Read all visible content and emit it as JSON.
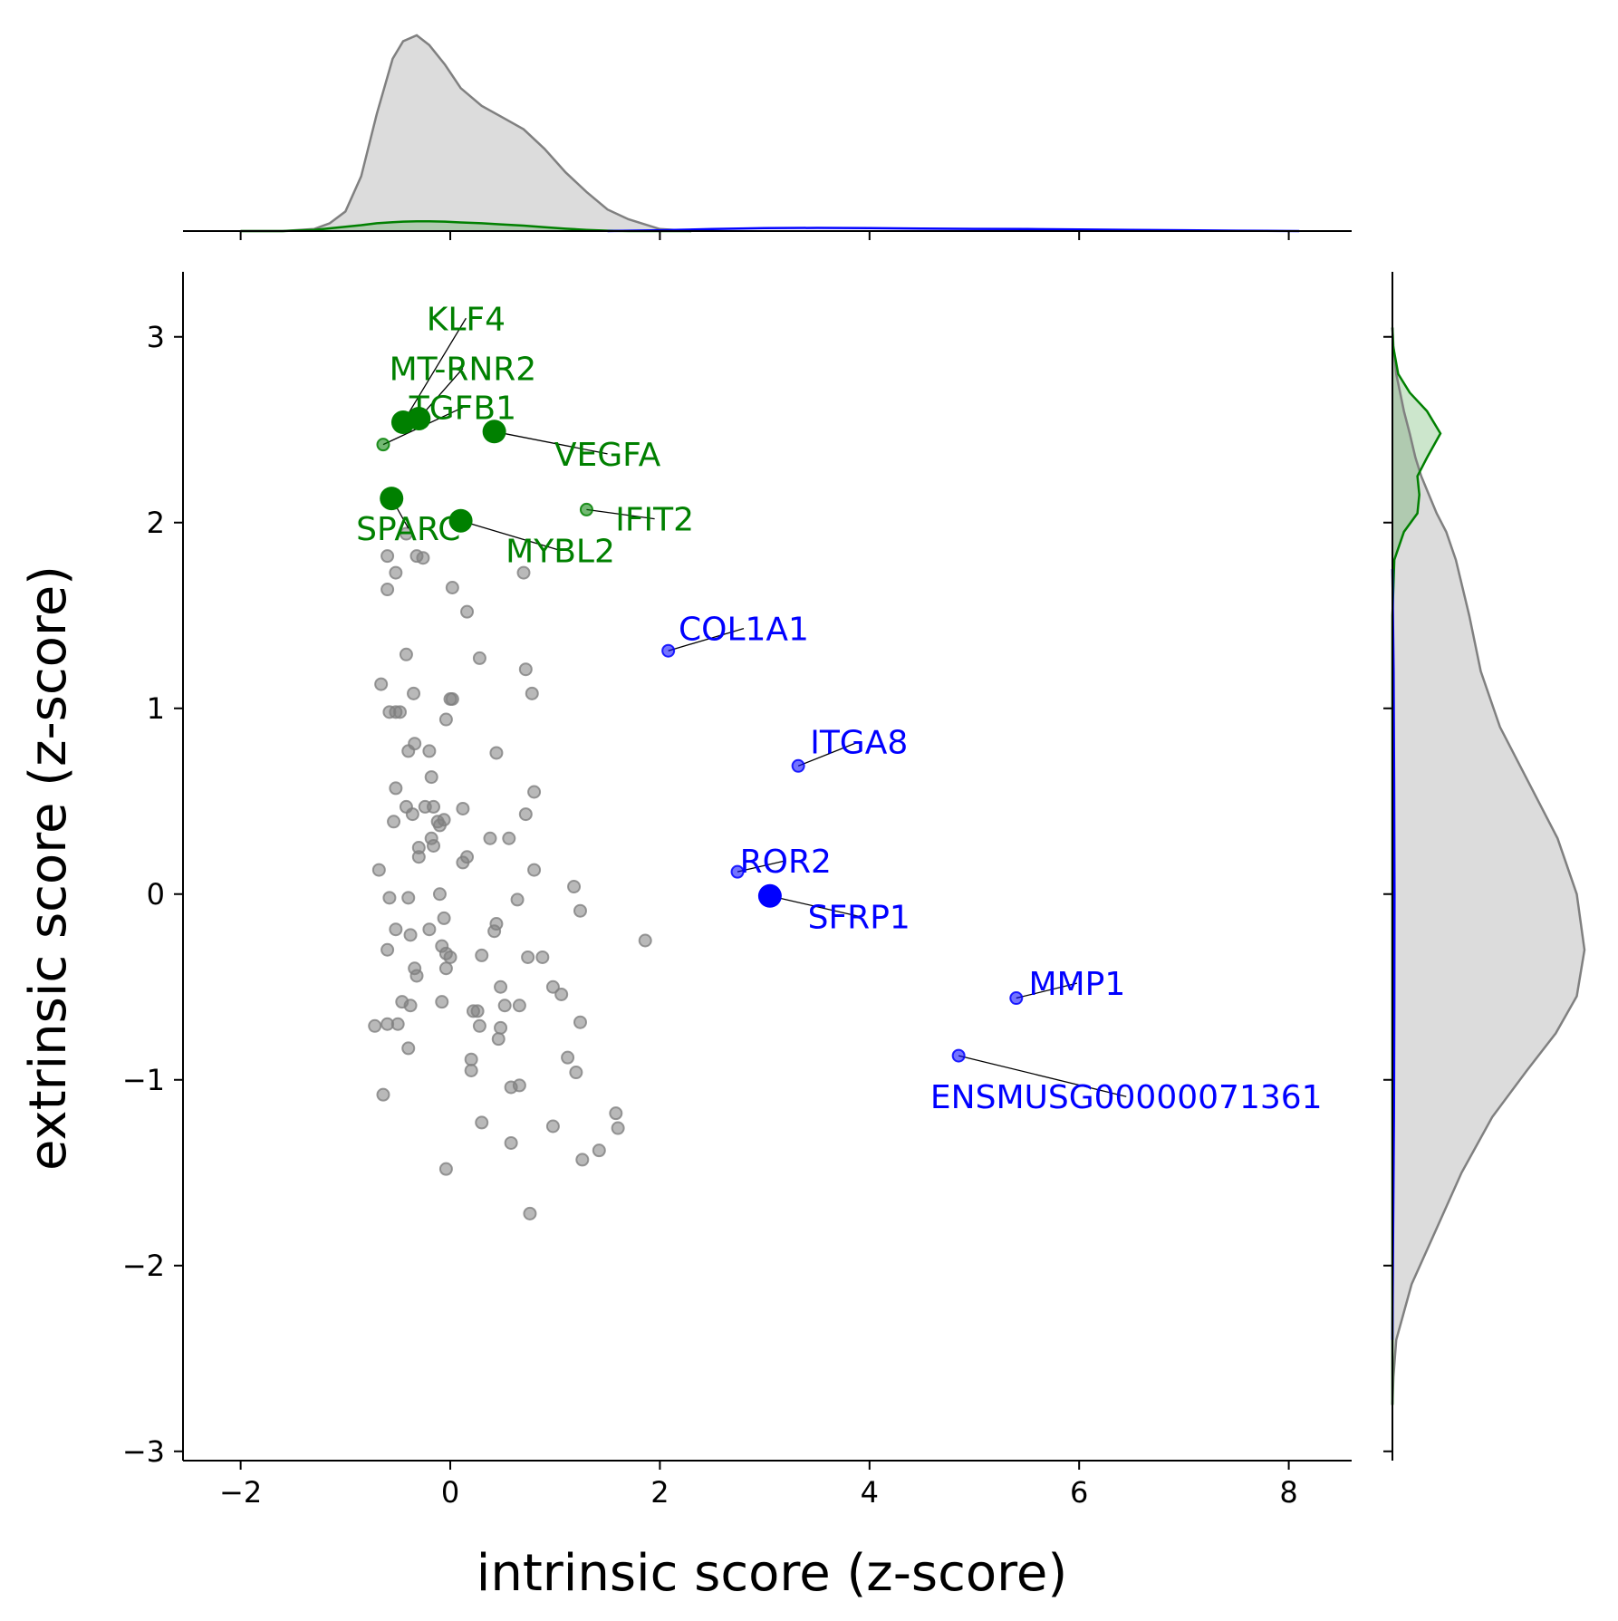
{
  "chart_data": {
    "type": "scatter",
    "title": "",
    "xlabel": "intrinsic score (z-score)",
    "ylabel": "extrinsic score (z-score)",
    "xlim": [
      -2.55,
      8.6
    ],
    "ylim": [
      -3.05,
      3.35
    ],
    "xticks": [
      -2,
      0,
      2,
      4,
      6,
      8
    ],
    "xtick_labels": [
      "−2",
      "0",
      "2",
      "4",
      "6",
      "8"
    ],
    "yticks": [
      -3,
      -2,
      -1,
      0,
      1,
      2,
      3
    ],
    "ytick_labels": [
      "−3",
      "−2",
      "−1",
      "0",
      "1",
      "2",
      "3"
    ],
    "grid": false,
    "legend": "none",
    "marginal_plots": [
      "top: density of intrinsic score",
      "right: density of extrinsic score"
    ],
    "colors": {
      "background_points": "#808080",
      "green_genes": "#008000",
      "blue_genes": "#0000ff",
      "leader_line": "#000000"
    },
    "series": [
      {
        "group": "background",
        "color": "#808080",
        "points": [
          [
            -0.6,
            1.82
          ],
          [
            -0.42,
            1.94
          ],
          [
            -0.32,
            1.82
          ],
          [
            -0.26,
            1.81
          ],
          [
            -0.52,
            1.73
          ],
          [
            -0.6,
            1.64
          ],
          [
            0.02,
            1.65
          ],
          [
            0.16,
            1.52
          ],
          [
            0.7,
            1.73
          ],
          [
            -0.42,
            1.29
          ],
          [
            0.28,
            1.27
          ],
          [
            0.72,
            1.21
          ],
          [
            -0.66,
            1.13
          ],
          [
            -0.35,
            1.08
          ],
          [
            0.0,
            1.05
          ],
          [
            0.02,
            1.05
          ],
          [
            0.78,
            1.08
          ],
          [
            -0.58,
            0.98
          ],
          [
            -0.52,
            0.98
          ],
          [
            -0.48,
            0.98
          ],
          [
            -0.04,
            0.94
          ],
          [
            -0.34,
            0.81
          ],
          [
            -0.4,
            0.77
          ],
          [
            -0.2,
            0.77
          ],
          [
            0.44,
            0.76
          ],
          [
            -0.18,
            0.63
          ],
          [
            -0.52,
            0.57
          ],
          [
            0.8,
            0.55
          ],
          [
            -0.42,
            0.47
          ],
          [
            -0.24,
            0.47
          ],
          [
            -0.16,
            0.47
          ],
          [
            0.12,
            0.46
          ],
          [
            -0.36,
            0.43
          ],
          [
            0.72,
            0.43
          ],
          [
            -0.06,
            0.4
          ],
          [
            -0.12,
            0.39
          ],
          [
            -0.1,
            0.37
          ],
          [
            -0.54,
            0.39
          ],
          [
            0.38,
            0.3
          ],
          [
            0.56,
            0.3
          ],
          [
            -0.18,
            0.3
          ],
          [
            -0.3,
            0.25
          ],
          [
            -0.16,
            0.26
          ],
          [
            -0.3,
            0.2
          ],
          [
            0.16,
            0.2
          ],
          [
            0.12,
            0.17
          ],
          [
            -0.68,
            0.13
          ],
          [
            0.8,
            0.13
          ],
          [
            1.18,
            0.04
          ],
          [
            -0.58,
            -0.02
          ],
          [
            -0.4,
            -0.02
          ],
          [
            -0.1,
            0.0
          ],
          [
            0.64,
            -0.03
          ],
          [
            1.24,
            -0.09
          ],
          [
            -0.52,
            -0.19
          ],
          [
            -0.2,
            -0.19
          ],
          [
            -0.06,
            -0.13
          ],
          [
            0.44,
            -0.16
          ],
          [
            0.42,
            -0.2
          ],
          [
            -0.38,
            -0.22
          ],
          [
            0.74,
            -0.34
          ],
          [
            0.88,
            -0.34
          ],
          [
            1.86,
            -0.25
          ],
          [
            -0.6,
            -0.3
          ],
          [
            -0.08,
            -0.28
          ],
          [
            0.0,
            -0.34
          ],
          [
            -0.04,
            -0.32
          ],
          [
            0.3,
            -0.33
          ],
          [
            -0.34,
            -0.4
          ],
          [
            -0.04,
            -0.4
          ],
          [
            -0.32,
            -0.44
          ],
          [
            0.48,
            -0.5
          ],
          [
            0.98,
            -0.5
          ],
          [
            1.06,
            -0.54
          ],
          [
            -0.46,
            -0.58
          ],
          [
            -0.38,
            -0.6
          ],
          [
            -0.08,
            -0.58
          ],
          [
            0.22,
            -0.63
          ],
          [
            0.26,
            -0.63
          ],
          [
            0.52,
            -0.6
          ],
          [
            0.66,
            -0.6
          ],
          [
            -0.72,
            -0.71
          ],
          [
            -0.6,
            -0.7
          ],
          [
            -0.5,
            -0.7
          ],
          [
            0.28,
            -0.71
          ],
          [
            0.48,
            -0.72
          ],
          [
            1.24,
            -0.69
          ],
          [
            0.46,
            -0.78
          ],
          [
            -0.4,
            -0.83
          ],
          [
            0.2,
            -0.89
          ],
          [
            0.2,
            -0.95
          ],
          [
            1.12,
            -0.88
          ],
          [
            1.2,
            -0.96
          ],
          [
            0.58,
            -1.04
          ],
          [
            0.66,
            -1.03
          ],
          [
            -0.64,
            -1.08
          ],
          [
            1.58,
            -1.18
          ],
          [
            1.6,
            -1.26
          ],
          [
            0.3,
            -1.23
          ],
          [
            0.98,
            -1.25
          ],
          [
            0.58,
            -1.34
          ],
          [
            1.26,
            -1.43
          ],
          [
            1.42,
            -1.38
          ],
          [
            -0.04,
            -1.48
          ],
          [
            0.76,
            -1.72
          ]
        ]
      },
      {
        "group": "green",
        "color": "#008000",
        "points": [
          {
            "label": "KLF4",
            "x": -0.45,
            "y": 2.54,
            "size": "large"
          },
          {
            "label": "MT-RNR2",
            "x": -0.3,
            "y": 2.56,
            "size": "large"
          },
          {
            "label": "TGFB1",
            "x": -0.64,
            "y": 2.42,
            "size": "small"
          },
          {
            "label": "VEGFA",
            "x": 0.42,
            "y": 2.49,
            "size": "large"
          },
          {
            "label": "SPARC",
            "x": -0.56,
            "y": 2.13,
            "size": "large"
          },
          {
            "label": "MYBL2",
            "x": 0.1,
            "y": 2.01,
            "size": "large"
          },
          {
            "label": "IFIT2",
            "x": 1.3,
            "y": 2.07,
            "size": "small"
          }
        ]
      },
      {
        "group": "blue",
        "color": "#0000ff",
        "points": [
          {
            "label": "COL1A1",
            "x": 2.08,
            "y": 1.31,
            "size": "small"
          },
          {
            "label": "ITGA8",
            "x": 3.32,
            "y": 0.69,
            "size": "small"
          },
          {
            "label": "ROR2",
            "x": 2.74,
            "y": 0.12,
            "size": "small"
          },
          {
            "label": "SFRP1",
            "x": 3.05,
            "y": -0.01,
            "size": "large"
          },
          {
            "label": "MMP1",
            "x": 5.4,
            "y": -0.56,
            "size": "small"
          },
          {
            "label": "ENSMUSG00000071361",
            "x": 4.85,
            "y": -0.87,
            "size": "small"
          }
        ]
      }
    ],
    "annotations": [
      {
        "text": "KLF4",
        "x": 0.15,
        "y": 3.1,
        "target": [
          -0.45,
          2.54
        ],
        "color": "#008000"
      },
      {
        "text": "MT-RNR2",
        "x": 0.12,
        "y": 2.83,
        "target": [
          -0.3,
          2.56
        ],
        "color": "#008000"
      },
      {
        "text": "TGFB1",
        "x": 0.12,
        "y": 2.62,
        "target": [
          -0.64,
          2.42
        ],
        "color": "#008000"
      },
      {
        "text": "VEGFA",
        "x": 1.5,
        "y": 2.37,
        "target": [
          0.42,
          2.49
        ],
        "color": "#008000"
      },
      {
        "text": "SPARC",
        "x": -0.4,
        "y": 1.97,
        "target": [
          -0.56,
          2.13
        ],
        "color": "#008000"
      },
      {
        "text": "MYBL2",
        "x": 1.05,
        "y": 1.85,
        "target": [
          0.1,
          2.01
        ],
        "color": "#008000"
      },
      {
        "text": "IFIT2",
        "x": 1.95,
        "y": 2.02,
        "target": [
          1.3,
          2.07
        ],
        "color": "#008000"
      },
      {
        "text": "COL1A1",
        "x": 2.8,
        "y": 1.43,
        "target": [
          2.08,
          1.31
        ],
        "color": "#0000ff"
      },
      {
        "text": "ITGA8",
        "x": 3.9,
        "y": 0.82,
        "target": [
          3.32,
          0.69
        ],
        "color": "#0000ff"
      },
      {
        "text": "ROR2",
        "x": 3.2,
        "y": 0.18,
        "target": [
          2.74,
          0.12
        ],
        "color": "#0000ff"
      },
      {
        "text": "SFRP1",
        "x": 3.9,
        "y": -0.12,
        "target": [
          3.05,
          -0.01
        ],
        "color": "#0000ff"
      },
      {
        "text": "MMP1",
        "x": 5.98,
        "y": -0.48,
        "target": [
          5.4,
          -0.56
        ],
        "color": "#0000ff"
      },
      {
        "text": "ENSMUSG00000071361",
        "x": 6.45,
        "y": -1.09,
        "target": [
          4.85,
          -0.87
        ],
        "color": "#0000ff"
      }
    ],
    "density_top": {
      "x": [
        -2.0,
        -1.6,
        -1.3,
        -1.15,
        -1.0,
        -0.85,
        -0.7,
        -0.55,
        -0.45,
        -0.32,
        -0.2,
        -0.05,
        0.1,
        0.3,
        0.5,
        0.7,
        0.9,
        1.1,
        1.3,
        1.5,
        1.7,
        2.0,
        2.3
      ],
      "gray": [
        0.0,
        0.0,
        0.01,
        0.04,
        0.1,
        0.28,
        0.6,
        0.88,
        0.97,
        1.0,
        0.95,
        0.85,
        0.73,
        0.64,
        0.58,
        0.52,
        0.42,
        0.3,
        0.2,
        0.11,
        0.06,
        0.01,
        0.0
      ],
      "green": [
        0.0,
        0.0,
        0.006,
        0.014,
        0.022,
        0.03,
        0.04,
        0.045,
        0.048,
        0.05,
        0.05,
        0.048,
        0.044,
        0.04,
        0.034,
        0.028,
        0.02,
        0.012,
        0.006,
        0.002,
        0.0,
        0.0,
        0.0
      ],
      "blue_x": [
        1.5,
        2.0,
        2.5,
        3.0,
        3.5,
        4.0,
        4.5,
        5.0,
        5.5,
        6.0,
        6.5,
        7.0,
        7.5,
        8.1
      ],
      "blue": [
        0.0,
        0.004,
        0.01,
        0.015,
        0.016,
        0.015,
        0.013,
        0.011,
        0.01,
        0.008,
        0.006,
        0.004,
        0.002,
        0.0
      ]
    },
    "density_right": {
      "y": [
        3.05,
        2.95,
        2.8,
        2.7,
        2.6,
        2.48,
        2.35,
        2.25,
        2.15,
        2.05,
        1.95,
        1.8,
        1.5,
        1.2,
        0.9,
        0.6,
        0.3,
        0.0,
        -0.3,
        -0.55,
        -0.75,
        -0.95,
        -1.2,
        -1.5,
        -1.8,
        -2.1,
        -2.4,
        -2.6,
        -2.75
      ],
      "gray": [
        0.0,
        0.005,
        0.02,
        0.04,
        0.06,
        0.09,
        0.12,
        0.15,
        0.19,
        0.23,
        0.28,
        0.33,
        0.4,
        0.46,
        0.56,
        0.71,
        0.86,
        0.96,
        1.0,
        0.96,
        0.85,
        0.7,
        0.52,
        0.36,
        0.23,
        0.1,
        0.02,
        0.005,
        0.0
      ],
      "green": [
        0.0,
        0.004,
        0.03,
        0.09,
        0.18,
        0.25,
        0.18,
        0.13,
        0.14,
        0.13,
        0.06,
        0.01,
        0.0,
        0.0,
        0.0,
        0.0,
        0.0,
        0.0,
        0.0,
        0.0,
        0.0,
        0.0,
        0.0,
        0.0,
        0.0,
        0.0,
        0.0,
        0.0,
        0.0
      ],
      "blue_y": [
        1.75,
        1.2,
        0.6,
        0.0,
        -0.6,
        -1.2,
        -1.8,
        -2.4
      ],
      "blue": [
        0.0,
        0.006,
        0.009,
        0.011,
        0.01,
        0.008,
        0.004,
        0.0
      ]
    }
  }
}
